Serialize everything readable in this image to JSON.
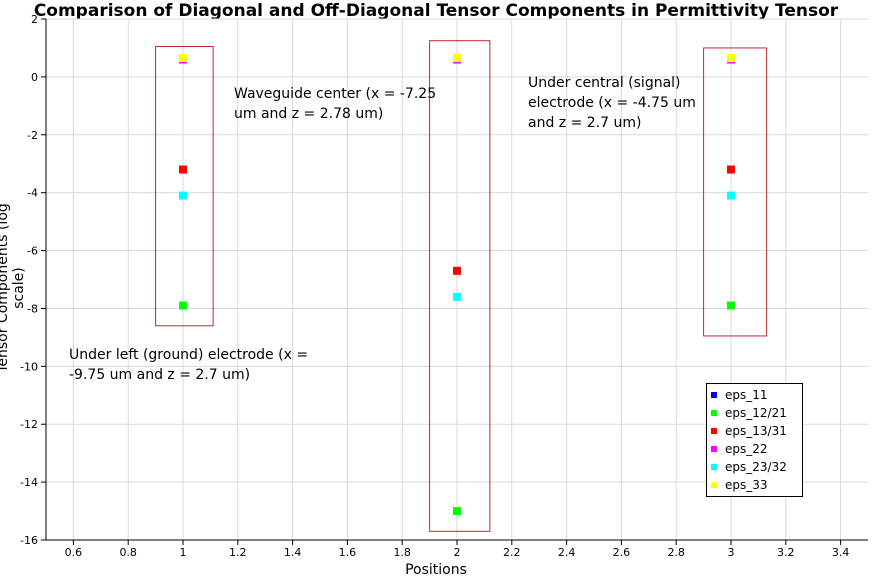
{
  "chart_data": {
    "type": "scatter",
    "title": "Comparison of Diagonal and Off-Diagonal Tensor Components in Permittivity Tensor",
    "xlabel": "Positions",
    "ylabel": "Tensor Components (log scale)",
    "xlim": [
      0.5,
      3.5
    ],
    "ylim": [
      -16,
      2
    ],
    "xticks": [
      0.6,
      0.8,
      1,
      1.2,
      1.4,
      1.6,
      1.8,
      2,
      2.2,
      2.4,
      2.6,
      2.8,
      3,
      3.2,
      3.4
    ],
    "xtick_labels": [
      "0.6",
      "0.8",
      "1",
      "1.2",
      "1.4",
      "1.6",
      "1.8",
      "2",
      "2.2",
      "2.4",
      "2.6",
      "2.8",
      "3",
      "3.2",
      "3.4"
    ],
    "yticks": [
      2,
      0,
      -2,
      -4,
      -6,
      -8,
      -10,
      -12,
      -14,
      -16
    ],
    "ytick_labels": [
      "2",
      "0",
      "-2",
      "-4",
      "-6",
      "-8",
      "-10",
      "-12",
      "-14",
      "-16"
    ],
    "grid": true,
    "legend_position": "bottom-right",
    "series": [
      {
        "name": "eps_11",
        "color": "#0000ff",
        "points": [
          [
            1,
            0.6
          ],
          [
            2,
            0.6
          ],
          [
            3,
            0.6
          ]
        ]
      },
      {
        "name": "eps_12/21",
        "color": "#00ff00",
        "points": [
          [
            1,
            -7.9
          ],
          [
            2,
            -15.0
          ],
          [
            3,
            -7.9
          ]
        ]
      },
      {
        "name": "eps_13/31",
        "color": "#ff0000",
        "points": [
          [
            1,
            -3.2
          ],
          [
            2,
            -6.7
          ],
          [
            3,
            -3.2
          ]
        ]
      },
      {
        "name": "eps_22",
        "color": "#ff00ff",
        "points": [
          [
            1,
            0.6
          ],
          [
            2,
            0.6
          ],
          [
            3,
            0.6
          ]
        ]
      },
      {
        "name": "eps_23/32",
        "color": "#00ffff",
        "points": [
          [
            1,
            -4.1
          ],
          [
            2,
            -7.6
          ],
          [
            3,
            -4.1
          ]
        ]
      },
      {
        "name": "eps_33",
        "color": "#ffff00",
        "points": [
          [
            1,
            0.65
          ],
          [
            2,
            0.65
          ],
          [
            3,
            0.65
          ]
        ]
      }
    ],
    "highlight_boxes": [
      {
        "x0": 0.9,
        "x1": 1.11,
        "y0": -8.6,
        "y1": 1.05
      },
      {
        "x0": 1.9,
        "x1": 2.12,
        "y0": -15.7,
        "y1": 1.25
      },
      {
        "x0": 2.9,
        "x1": 3.13,
        "y0": -8.95,
        "y1": 1.0
      }
    ],
    "annotations": [
      {
        "id": "waveguide",
        "lines": [
          "Waveguide center (x = -7.25",
          "um and z = 2.78 um)"
        ]
      },
      {
        "id": "central",
        "lines": [
          "Under central (signal)",
          "electrode (x = -4.75 um",
          "and z = 2.7 um)"
        ]
      },
      {
        "id": "left",
        "lines": [
          "Under left (ground) electrode (x =",
          "-9.75 um and z = 2.7 um)"
        ]
      }
    ]
  }
}
